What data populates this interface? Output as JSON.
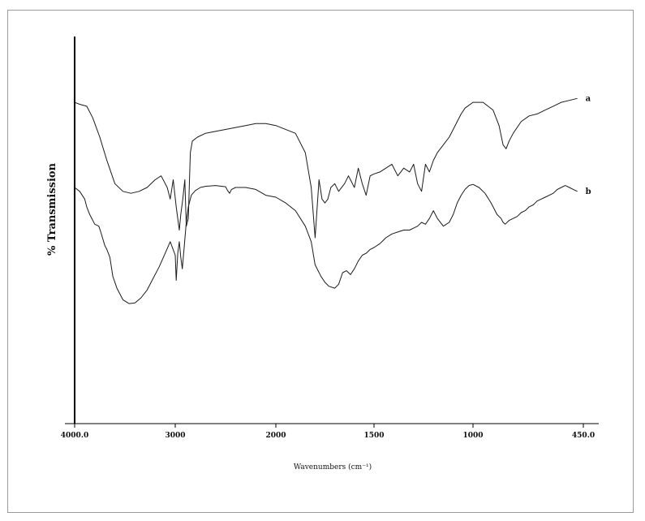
{
  "chart_data": {
    "type": "line",
    "title": "",
    "xlabel": "Wavenumbers (cm⁻¹)",
    "ylabel": "% Transmission",
    "x_tick_labels": [
      "4000.0",
      "3000",
      "2000",
      "1500",
      "1000",
      "450.0"
    ],
    "x_reversed": true,
    "xlim": [
      4000,
      450
    ],
    "ylim": [
      0,
      100
    ],
    "grid": false,
    "legend": "none",
    "line_color": "#1a1a1a",
    "series": [
      {
        "name": "a",
        "x": [
          4000,
          3950,
          3880,
          3820,
          3750,
          3680,
          3600,
          3520,
          3440,
          3360,
          3280,
          3200,
          3140,
          3080,
          3050,
          3020,
          2990,
          2960,
          2945,
          2925,
          2905,
          2890,
          2870,
          2850,
          2830,
          2780,
          2700,
          2600,
          2500,
          2400,
          2300,
          2200,
          2100,
          2000,
          1900,
          1850,
          1820,
          1800,
          1780,
          1765,
          1750,
          1735,
          1720,
          1700,
          1680,
          1650,
          1630,
          1600,
          1580,
          1560,
          1540,
          1520,
          1500,
          1470,
          1440,
          1410,
          1380,
          1350,
          1320,
          1300,
          1280,
          1260,
          1240,
          1220,
          1200,
          1180,
          1150,
          1120,
          1100,
          1080,
          1060,
          1040,
          1000,
          950,
          900,
          870,
          850,
          835,
          820,
          800,
          760,
          720,
          680,
          640,
          600,
          560,
          520,
          480
        ],
        "y": [
          83,
          82.5,
          82,
          79,
          74,
          68,
          62,
          60,
          59.5,
          60,
          61,
          63,
          64,
          61,
          58,
          63,
          56,
          50,
          54,
          58,
          63,
          51,
          53,
          70,
          73,
          74,
          75,
          75.5,
          76,
          76.5,
          77,
          77.5,
          77.5,
          77,
          75,
          70,
          61,
          48,
          63,
          58,
          57,
          58,
          61,
          62,
          60,
          62,
          64,
          61,
          66,
          62,
          59,
          64,
          64.5,
          65,
          66,
          67,
          64,
          66,
          65,
          67,
          62,
          60,
          67,
          65,
          68,
          70,
          72,
          74,
          76,
          78,
          80,
          81.5,
          83,
          83,
          81,
          77,
          72,
          71,
          73,
          75,
          78,
          79.5,
          80,
          81,
          82,
          83,
          83.5,
          84
        ]
      },
      {
        "name": "b",
        "x": [
          4000,
          3950,
          3900,
          3880,
          3850,
          3800,
          3760,
          3740,
          3700,
          3680,
          3650,
          3620,
          3580,
          3520,
          3460,
          3400,
          3340,
          3280,
          3220,
          3160,
          3100,
          3050,
          3000,
          2990,
          2975,
          2960,
          2945,
          2930,
          2910,
          2890,
          2870,
          2840,
          2800,
          2750,
          2700,
          2650,
          2600,
          2500,
          2480,
          2460,
          2440,
          2400,
          2300,
          2200,
          2100,
          2000,
          1950,
          1900,
          1850,
          1820,
          1800,
          1770,
          1750,
          1730,
          1700,
          1680,
          1660,
          1640,
          1620,
          1600,
          1580,
          1560,
          1540,
          1520,
          1500,
          1470,
          1440,
          1410,
          1380,
          1350,
          1320,
          1300,
          1280,
          1260,
          1240,
          1220,
          1200,
          1180,
          1150,
          1120,
          1100,
          1080,
          1060,
          1040,
          1020,
          1000,
          970,
          940,
          910,
          880,
          860,
          850,
          840,
          820,
          800,
          780,
          760,
          740,
          720,
          700,
          680,
          660,
          640,
          620,
          600,
          580,
          560,
          540,
          520,
          500,
          480
        ],
        "y": [
          61,
          60,
          58,
          56,
          54,
          51.5,
          51,
          49.5,
          46,
          45,
          43,
          38,
          35,
          32,
          31,
          31.2,
          32.5,
          34.5,
          37.5,
          40.5,
          44,
          47,
          43.5,
          37,
          44,
          47,
          43,
          40,
          46,
          52,
          56,
          59,
          60.2,
          61,
          61.3,
          61.4,
          61.5,
          61.2,
          60.2,
          59.5,
          60.5,
          61,
          61,
          60.5,
          59,
          58.5,
          57,
          55,
          51,
          47,
          41,
          38,
          36.5,
          35.5,
          35,
          36,
          39,
          39.5,
          38.5,
          40,
          42,
          43.5,
          44,
          45,
          45.5,
          46.5,
          48,
          49,
          49.5,
          50,
          50,
          50.5,
          51,
          52,
          51.5,
          53,
          55,
          53,
          51,
          52,
          54,
          57,
          59,
          60.5,
          61.5,
          61.8,
          61,
          59.5,
          57,
          54,
          53,
          52,
          51.5,
          52.5,
          53,
          53.5,
          54.5,
          55,
          56,
          56.5,
          57.5,
          58,
          58.5,
          59,
          59.5,
          60.5,
          61,
          61.5,
          61,
          60.5,
          60
        ]
      }
    ]
  }
}
